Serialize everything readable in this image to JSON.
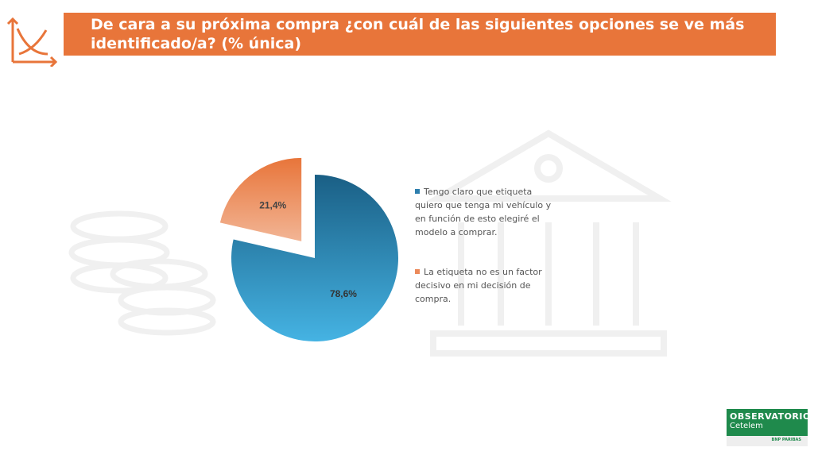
{
  "header": {
    "title": "De cara a su próxima compra ¿con cuál de las siguientes opciones se ve más identificado/a? (% única)"
  },
  "brand": {
    "name": "OBSERVATORIO",
    "sub": "Cetelem",
    "parent": "BNP PARIBAS"
  },
  "colors": {
    "accent": "#e8753a",
    "brand": "#1f8a4c"
  },
  "chart_data": {
    "type": "pie",
    "title": "De cara a su próxima compra ¿con cuál de las siguientes opciones se ve más identificado/a? (% única)",
    "legend_position": "right",
    "slices": [
      {
        "name": "Tengo claro que etiqueta quiero que tenga mi vehículo y en función de esto elegiré el modelo a comprar.",
        "value": 78.6,
        "label": "78,6%",
        "color": "#2e8cc0"
      },
      {
        "name": "La etiqueta no es un factor decisivo en mi decisión de compra.",
        "value": 21.4,
        "label": "21,4%",
        "color": "#ec8a5a",
        "exploded": true
      }
    ]
  }
}
